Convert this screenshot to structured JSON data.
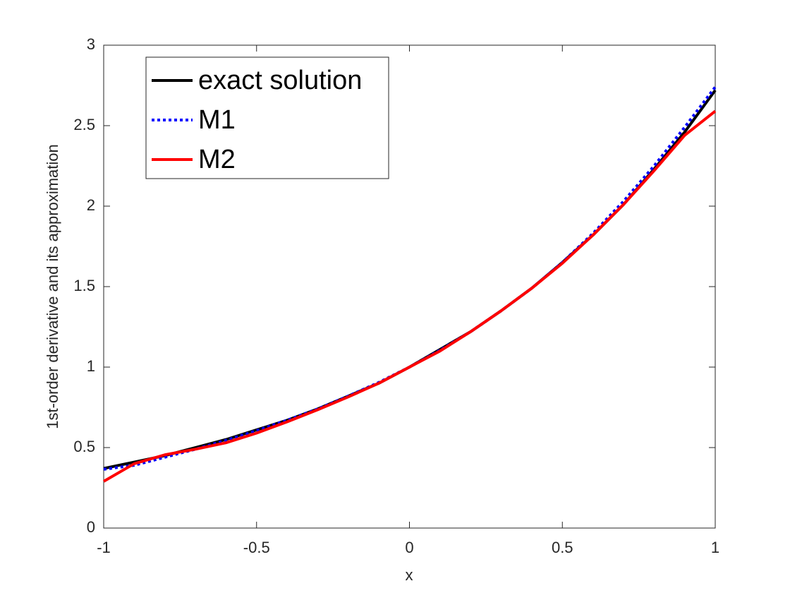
{
  "chart_data": {
    "type": "line",
    "xlabel": "x",
    "ylabel": "1st-order derivative and its approximation",
    "x": [
      -1,
      -0.9,
      -0.8,
      -0.7,
      -0.6,
      -0.5,
      -0.4,
      -0.3,
      -0.2,
      -0.1,
      0,
      0.1,
      0.2,
      0.3,
      0.4,
      0.5,
      0.6,
      0.7,
      0.8,
      0.9,
      1
    ],
    "series": [
      {
        "name": "exact solution",
        "color": "#000000",
        "dash": "solid",
        "values": [
          0.37,
          0.41,
          0.45,
          0.5,
          0.55,
          0.61,
          0.67,
          0.74,
          0.82,
          0.9,
          1,
          1.11,
          1.22,
          1.35,
          1.49,
          1.65,
          1.82,
          2.01,
          2.23,
          2.46,
          2.72
        ]
      },
      {
        "name": "M1",
        "color": "#0000ff",
        "dash": "dotted",
        "values": [
          0.365,
          0.39,
          0.44,
          0.49,
          0.545,
          0.605,
          0.67,
          0.74,
          0.82,
          0.905,
          1,
          1.105,
          1.22,
          1.35,
          1.49,
          1.65,
          1.83,
          2.03,
          2.25,
          2.49,
          2.74
        ]
      },
      {
        "name": "M2",
        "color": "#ff0000",
        "dash": "solid",
        "values": [
          0.29,
          0.4,
          0.455,
          0.49,
          0.53,
          0.59,
          0.66,
          0.735,
          0.815,
          0.9,
          1,
          1.1,
          1.22,
          1.35,
          1.49,
          1.645,
          1.82,
          2.01,
          2.22,
          2.44,
          2.59
        ]
      }
    ],
    "xlim": [
      -1,
      1
    ],
    "ylim": [
      0,
      3
    ],
    "xticks": [
      -1,
      -0.5,
      0,
      0.5,
      1
    ],
    "yticks": [
      0,
      0.5,
      1,
      1.5,
      2,
      2.5,
      3
    ],
    "grid": false,
    "legend_loc": "northwest"
  }
}
